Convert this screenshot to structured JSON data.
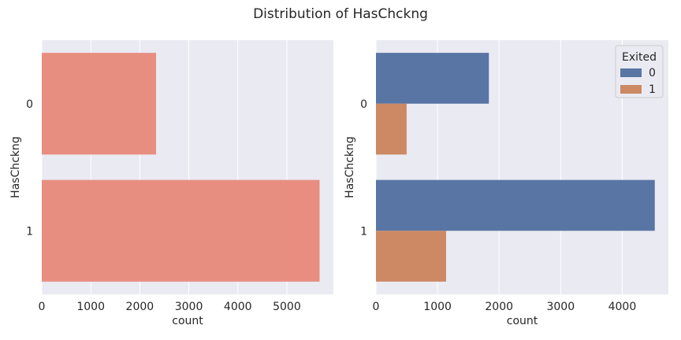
{
  "figure_title": "Distribution of HasChckng",
  "chart_data": [
    {
      "type": "bar",
      "orientation": "horizontal",
      "categories": [
        "0",
        "1"
      ],
      "series": [
        {
          "values": [
            2332,
            5668
          ],
          "color": "#e88e81"
        }
      ],
      "xlabel": "count",
      "ylabel": "HasChckng",
      "xlim": [
        0,
        5950
      ],
      "xticks": [
        0,
        1000,
        2000,
        3000,
        4000,
        5000
      ],
      "grid": true,
      "background": "#eaeaf2"
    },
    {
      "type": "bar",
      "orientation": "horizontal",
      "categories": [
        "0",
        "1"
      ],
      "series": [
        {
          "name": "0",
          "values": [
            1834,
            4529
          ],
          "color": "#5875a4"
        },
        {
          "name": "1",
          "values": [
            498,
            1139
          ],
          "color": "#cc8963"
        }
      ],
      "xlabel": "count",
      "ylabel": "HasChckng",
      "xlim": [
        0,
        4750
      ],
      "xticks": [
        0,
        1000,
        2000,
        3000,
        4000
      ],
      "grid": true,
      "background": "#eaeaf2",
      "legend": {
        "title": "Exited",
        "position": "top-right"
      }
    }
  ]
}
